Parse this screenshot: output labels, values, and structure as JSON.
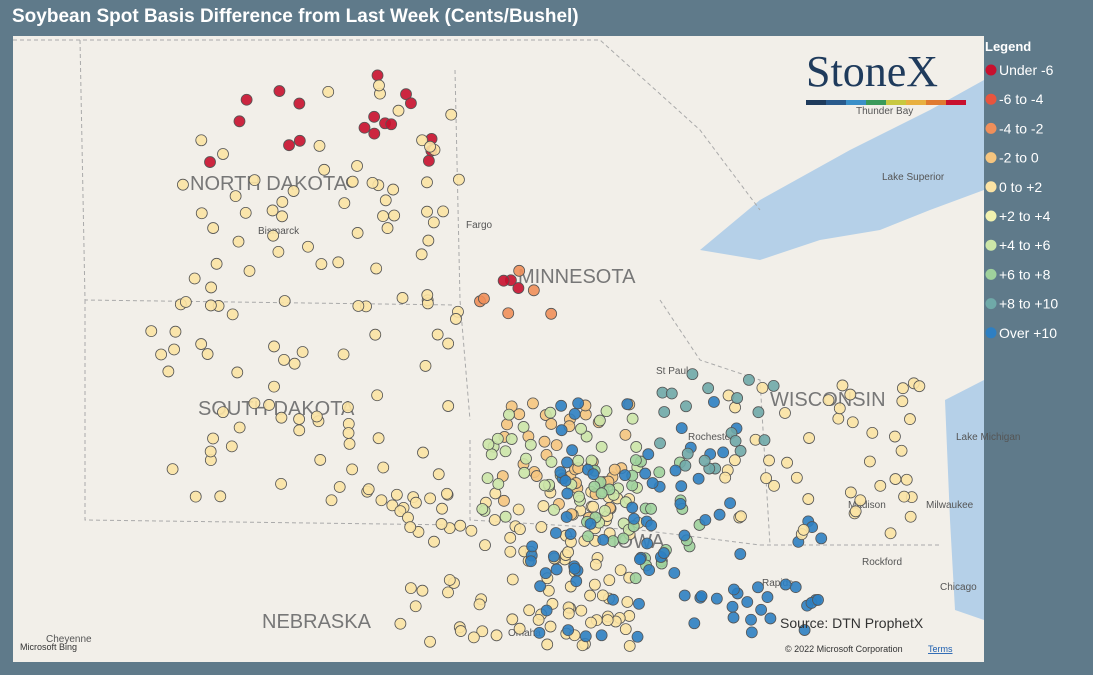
{
  "header": {
    "title": "Soybean Spot Basis Difference from Last Week (Cents/Bushel)"
  },
  "legend": {
    "title": "Legend",
    "items": [
      {
        "label": "Under -6",
        "color": "#c8102e"
      },
      {
        "label": "-6 to -4",
        "color": "#e8553e"
      },
      {
        "label": "-4 to -2",
        "color": "#f08f5a"
      },
      {
        "label": "-2 to 0",
        "color": "#f5c57f"
      },
      {
        "label": "0 to +2",
        "color": "#fbe3a4"
      },
      {
        "label": "+2 to +4",
        "color": "#f2f2b0"
      },
      {
        "label": "+4 to +6",
        "color": "#cce6a8"
      },
      {
        "label": "+6 to +8",
        "color": "#9fd19c"
      },
      {
        "label": "+8 to +10",
        "color": "#6fa9a8"
      },
      {
        "label": "Over +10",
        "color": "#2e7fc2"
      }
    ]
  },
  "map": {
    "states": [
      "NORTH DAKOTA",
      "SOUTH DAKOTA",
      "MINNESOTA",
      "WISCONSIN",
      "NEBRASKA",
      "IOWA"
    ],
    "places": [
      "Bismarck",
      "Fargo",
      "St Paul",
      "Rochester",
      "Madison",
      "Milwaukee",
      "Rockford",
      "Chicago",
      "Thunder Bay",
      "Lake Superior",
      "Lake Michigan",
      "Cheyenne",
      "Omaha",
      "Rapids"
    ]
  },
  "logo": "StoneX",
  "source": "Source: DTN ProphetX",
  "footer": {
    "provider": "Microsoft Bing",
    "copyright": "© 2022 Microsoft Corporation",
    "terms": "Terms"
  }
}
